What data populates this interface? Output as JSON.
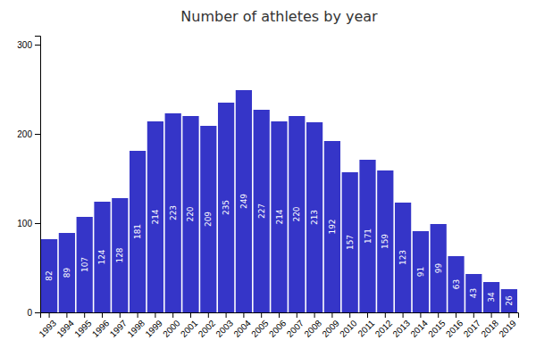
{
  "chart_data": {
    "type": "bar",
    "title": "Number of athletes by year",
    "categories": [
      "1993",
      "1994",
      "1995",
      "1996",
      "1997",
      "1998",
      "1999",
      "2000",
      "2001",
      "2002",
      "2003",
      "2004",
      "2005",
      "2006",
      "2007",
      "2008",
      "2009",
      "2010",
      "2011",
      "2012",
      "2013",
      "2014",
      "2015",
      "2016",
      "2017",
      "2018",
      "2019"
    ],
    "values": [
      82,
      89,
      107,
      124,
      128,
      181,
      214,
      223,
      220,
      209,
      235,
      249,
      227,
      214,
      220,
      213,
      192,
      157,
      171,
      159,
      123,
      91,
      99,
      63,
      43,
      34,
      26
    ],
    "color": "#3535c8",
    "ylim": [
      0,
      310
    ],
    "yticks": [
      0,
      100,
      200,
      300
    ],
    "grid": false,
    "data_labels": true
  }
}
